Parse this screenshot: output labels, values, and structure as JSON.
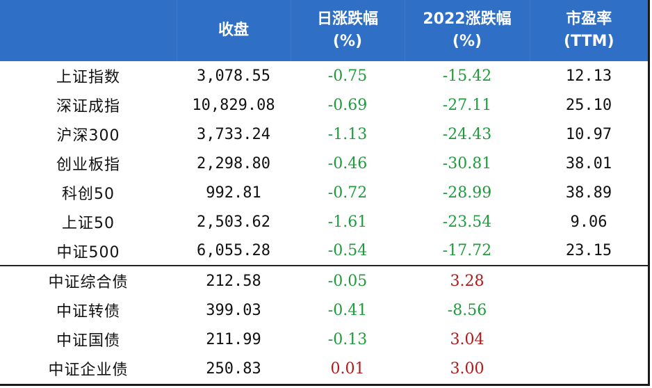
{
  "header": {
    "col0": "",
    "col1": "收盘",
    "col2_line1": "日涨跌幅",
    "col2_line2": "(%)",
    "col3_line1": "2022涨跌幅",
    "col3_line2": "(%)",
    "col4_line1": "市盈率",
    "col4_line2": "(TTM)"
  },
  "index_rows": [
    {
      "name": "上证指数",
      "close": "3,078.55",
      "daily": "-0.75",
      "ytd": "-15.42",
      "pe": "12.13",
      "daily_dir": "neg",
      "ytd_dir": "neg"
    },
    {
      "name": "深证成指",
      "close": "10,829.08",
      "daily": "-0.69",
      "ytd": "-27.11",
      "pe": "25.10",
      "daily_dir": "neg",
      "ytd_dir": "neg"
    },
    {
      "name": "沪深300",
      "close": "3,733.24",
      "daily": "-1.13",
      "ytd": "-24.43",
      "pe": "10.97",
      "daily_dir": "neg",
      "ytd_dir": "neg"
    },
    {
      "name": "创业板指",
      "close": "2,298.80",
      "daily": "-0.46",
      "ytd": "-30.81",
      "pe": "38.01",
      "daily_dir": "neg",
      "ytd_dir": "neg"
    },
    {
      "name": "科创50",
      "close": "992.81",
      "daily": "-0.72",
      "ytd": "-28.99",
      "pe": "38.89",
      "daily_dir": "neg",
      "ytd_dir": "neg"
    },
    {
      "name": "上证50",
      "close": "2,503.62",
      "daily": "-1.61",
      "ytd": "-23.54",
      "pe": "9.06",
      "daily_dir": "neg",
      "ytd_dir": "neg"
    },
    {
      "name": "中证500",
      "close": "6,055.28",
      "daily": "-0.54",
      "ytd": "-17.72",
      "pe": "23.15",
      "daily_dir": "neg",
      "ytd_dir": "neg"
    }
  ],
  "bond_rows": [
    {
      "name": "中证综合债",
      "close": "212.58",
      "daily": "-0.05",
      "ytd": "3.28",
      "daily_dir": "neg",
      "ytd_dir": "pos"
    },
    {
      "name": "中证转债",
      "close": "399.03",
      "daily": "-0.41",
      "ytd": "-8.56",
      "daily_dir": "neg",
      "ytd_dir": "neg"
    },
    {
      "name": "中证国债",
      "close": "211.99",
      "daily": "-0.13",
      "ytd": "3.04",
      "daily_dir": "neg",
      "ytd_dir": "pos"
    },
    {
      "name": "中证企业债",
      "close": "250.83",
      "daily": "0.01",
      "ytd": "3.00",
      "daily_dir": "pos",
      "ytd_dir": "pos"
    }
  ],
  "colors": {
    "header_bg": "#2f6fc6",
    "negative": "#1f9a3c",
    "positive": "#b01a1a"
  }
}
